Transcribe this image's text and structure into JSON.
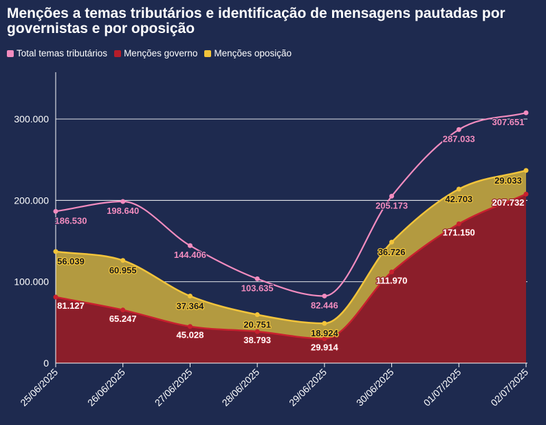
{
  "chart_data": {
    "type": "area",
    "title": "Menções a temas tributários e identificação de mensagens pautadas por governistas e por oposição",
    "categories": [
      "25/06/2025",
      "26/06/2025",
      "27/06/2025",
      "28/06/2025",
      "29/06/2025",
      "30/06/2025",
      "01/07/2025",
      "02/07/2025"
    ],
    "series": [
      {
        "name": "Total temas tributários",
        "kind": "line",
        "color": "#f28cbf",
        "values": [
          186530,
          198640,
          144406,
          103635,
          82446,
          205173,
          287033,
          307651
        ],
        "labels": [
          "186.530",
          "198.640",
          "144.406",
          "103.635",
          "82.446",
          "205.173",
          "287.033",
          "307.651"
        ]
      },
      {
        "name": "Menções governo",
        "kind": "area",
        "color": "#b51d2a",
        "values": [
          81127,
          65247,
          45028,
          38793,
          29914,
          111970,
          171150,
          207732
        ],
        "labels": [
          "81.127",
          "65.247",
          "45.028",
          "38.793",
          "29.914",
          "111.970",
          "171.150",
          "207.732"
        ]
      },
      {
        "name": "Menções oposição",
        "kind": "stacked-area",
        "color": "#f2c43b",
        "values": [
          56039,
          60955,
          37364,
          20751,
          18924,
          36726,
          42703,
          29033
        ],
        "labels": [
          "56.039",
          "60.955",
          "37.364",
          "20.751",
          "18.924",
          "36.726",
          "42.703",
          "29.033"
        ]
      }
    ],
    "ylim": [
      0,
      355000
    ],
    "yticks": [
      0,
      100000,
      200000,
      300000
    ],
    "ytick_labels": [
      "0",
      "100.000",
      "200.000",
      "300.000"
    ],
    "xlabel": "",
    "ylabel": "",
    "legend_position": "top-left",
    "grid": true
  },
  "colors": {
    "background": "#1e2a4f",
    "grid": "#ffffff",
    "axis": "#ffffff"
  }
}
